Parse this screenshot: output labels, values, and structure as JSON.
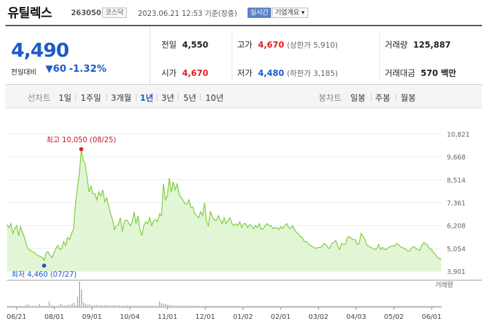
{
  "header": {
    "title": "유틸렉스",
    "code": "263050",
    "market": "코스닥",
    "time": "2023.06.21 12:53  기준(장중)",
    "live": "실시간",
    "corp_info": "기업개요 ▾"
  },
  "quote": {
    "price": "4,490",
    "change_label": "전일대비",
    "change_value": "▼60",
    "change_pct": "-1.32%",
    "prev": {
      "label": "전일",
      "value": "4,550"
    },
    "high": {
      "label": "고가",
      "value": "4,670",
      "sub": "(상한가 5,910)"
    },
    "volume": {
      "label": "거래량",
      "value": "125,887"
    },
    "open": {
      "label": "시가",
      "value": "4,670"
    },
    "low": {
      "label": "저가",
      "value": "4,480",
      "sub": "(하한가 3,185)"
    },
    "amount": {
      "label": "거래대금",
      "value": "570 백만"
    }
  },
  "tabs": {
    "line_chart_label": "선차트",
    "periods": [
      "1일",
      "1주일",
      "3개월",
      "1년",
      "3년",
      "5년",
      "10년"
    ],
    "active_period": "1년",
    "candle_chart_label": "봉차트",
    "candles": [
      "일봉",
      "주봉",
      "월봉"
    ]
  },
  "colors": {
    "line": "#7acc3c",
    "fill": "#e2f5d4",
    "up": "#e0202a",
    "down": "#1e5ac8"
  },
  "chart_data": {
    "type": "area",
    "title": "",
    "y_ticks": [
      "10,821",
      "9,668",
      "8,514",
      "7,361",
      "6,208",
      "5,054",
      "3,901"
    ],
    "ylim": [
      3901,
      10821
    ],
    "x_ticks": [
      "06/21",
      "08/01",
      "09/01",
      "10/04",
      "11/01",
      "12/01",
      "01/02",
      "02/01",
      "03/02",
      "04/03",
      "05/02",
      "06/01"
    ],
    "volume_label": "거래량",
    "max_annotation": {
      "text": "최고 10,050 (08/25)",
      "value": 10050,
      "date": "08/25"
    },
    "min_annotation": {
      "text": "최저 4,460 (07/27)",
      "value": 4460,
      "date": "07/27"
    },
    "series": [
      {
        "values": [
          6250,
          6100,
          6300,
          5800,
          6050,
          6200,
          5700,
          6150,
          5850,
          5600,
          5200,
          5000,
          4950,
          4880,
          4850,
          4750,
          4700,
          4650,
          4600,
          4460,
          4800,
          4900,
          4700,
          4600,
          4800,
          5050,
          5200,
          5000,
          5050,
          5400,
          5200,
          5600,
          5500,
          5800,
          6000,
          7200,
          8100,
          8800,
          10050,
          9500,
          9300,
          8600,
          7900,
          8200,
          7800,
          7800,
          7500,
          7900,
          7700,
          8000,
          7400,
          7600,
          7200,
          6800,
          6500,
          6000,
          6200,
          6250,
          6600,
          5900,
          6400,
          6500,
          6400,
          6200,
          6350,
          6900,
          6300,
          6700,
          6000,
          5700,
          6200,
          6400,
          6300,
          6600,
          6200,
          6450,
          6500,
          6400,
          6800,
          6700,
          8300,
          7500,
          7700,
          8600,
          7900,
          8400,
          8000,
          8300,
          7800,
          7600,
          7500,
          7300,
          7300,
          7500,
          7100,
          7150,
          6800,
          6700,
          6600,
          6900,
          6700,
          7350,
          6400,
          6200,
          6900,
          6650,
          6500,
          6450,
          6700,
          6500,
          6300,
          6600,
          6300,
          6450,
          6600,
          6300,
          6200,
          6300,
          6200,
          6400,
          6100,
          6300,
          6300,
          6100,
          6250,
          6200,
          6050,
          6200,
          6100,
          6300,
          6000,
          6050,
          6200,
          6300,
          6200,
          6200,
          6050,
          6100,
          6100,
          6000,
          6150,
          6050,
          6200,
          6300,
          6100,
          6050,
          6200,
          6000,
          5850,
          5800,
          5650,
          5600,
          5400,
          5400,
          5300,
          5200,
          5150,
          5100,
          5050,
          5100,
          5100,
          5150,
          5300,
          5250,
          5100,
          5050,
          5300,
          5350,
          5450,
          5200,
          5000,
          5300,
          5250,
          5250,
          5600,
          5650,
          5550,
          5500,
          5500,
          5250,
          5300,
          5800,
          5650,
          5500,
          5200,
          5150,
          5100,
          5050,
          5000,
          5050,
          5250,
          5000,
          5100,
          5000,
          5000,
          5100,
          5150,
          5200,
          5150,
          5300,
          5250,
          5150,
          5100,
          5050,
          5000,
          4900,
          4950,
          5100,
          5150,
          5050,
          5000,
          4950,
          5200,
          5350,
          5300,
          5200,
          5050,
          5000,
          4850,
          4750,
          4600,
          4550,
          4490
        ]
      }
    ],
    "volume": [
      2,
      3,
      2,
      2,
      3,
      2,
      1,
      2,
      2,
      3,
      6,
      8,
      3,
      2,
      2,
      3,
      2,
      9,
      2,
      2,
      2,
      3,
      18,
      4,
      3,
      2,
      2,
      3,
      10,
      5,
      3,
      4,
      6,
      5,
      11,
      14,
      6,
      36,
      90,
      62,
      15,
      10,
      6,
      8,
      5,
      4,
      5,
      6,
      4,
      5,
      4,
      5,
      4,
      4,
      3,
      4,
      5,
      4,
      3,
      4,
      3,
      4,
      3,
      4,
      3,
      4,
      3,
      4,
      3,
      3,
      4,
      3,
      3,
      4,
      3,
      3,
      3,
      2,
      3,
      3,
      18,
      12,
      9,
      10,
      6,
      6,
      5,
      4,
      4,
      3,
      3,
      3,
      3,
      3,
      3,
      2,
      3,
      3,
      2,
      3,
      2,
      3,
      2,
      2,
      3,
      2,
      2,
      2,
      3,
      2,
      2,
      2,
      2,
      2,
      2,
      2,
      2,
      2,
      2,
      2,
      2,
      2,
      2,
      2,
      2,
      2,
      2,
      2,
      2,
      2,
      2,
      2,
      2,
      2,
      2,
      2,
      2,
      2,
      2,
      2,
      2,
      2,
      2,
      2,
      2,
      2,
      2,
      2,
      2,
      2,
      2,
      2,
      2,
      2,
      2,
      2,
      2,
      2,
      2,
      2,
      2,
      2,
      2,
      2,
      2,
      2,
      2,
      2,
      2,
      2,
      2,
      2,
      2,
      2,
      2,
      2,
      2,
      2,
      2,
      2,
      2,
      2,
      2,
      2,
      2,
      2,
      2,
      2,
      2,
      2,
      2,
      2,
      2,
      2,
      2,
      2,
      2,
      2,
      2,
      2,
      2,
      2,
      2,
      2,
      2,
      2,
      2,
      2,
      2,
      2,
      2,
      2,
      2,
      2,
      2,
      2,
      2,
      2,
      2,
      2,
      2,
      2,
      2,
      2,
      2,
      2,
      2,
      2,
      2
    ]
  }
}
